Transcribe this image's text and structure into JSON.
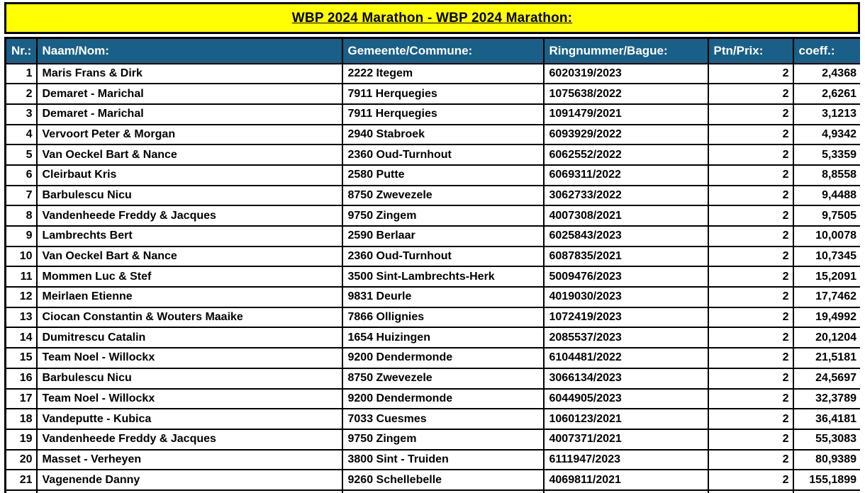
{
  "title": "WBP 2024 Marathon - WBP 2024 Marathon:",
  "colors": {
    "banner_bg": "#ffff00",
    "header_bg": "#1a5f87",
    "header_text": "#ffffff",
    "border": "#000000"
  },
  "table": {
    "columns": [
      {
        "key": "nr",
        "label": "Nr.:"
      },
      {
        "key": "naam",
        "label": "Naam/Nom:"
      },
      {
        "key": "gem",
        "label": "Gemeente/Commune:"
      },
      {
        "key": "ring",
        "label": "Ringnummer/Bague:"
      },
      {
        "key": "ptn",
        "label": "Ptn/Prix:"
      },
      {
        "key": "coeff",
        "label": "coeff.:"
      }
    ],
    "rows": [
      [
        "1",
        "Maris Frans & Dirk",
        "2222 Itegem",
        "6020319/2023",
        "2",
        "2,4368"
      ],
      [
        "2",
        "Demaret - Marichal",
        "7911 Herquegies",
        "1075638/2022",
        "2",
        "2,6261"
      ],
      [
        "3",
        "Demaret - Marichal",
        "7911 Herquegies",
        "1091479/2021",
        "2",
        "3,1213"
      ],
      [
        "4",
        "Vervoort Peter & Morgan",
        "2940 Stabroek",
        "6093929/2022",
        "2",
        "4,9342"
      ],
      [
        "5",
        "Van Oeckel Bart & Nance",
        "2360 Oud-Turnhout",
        "6062552/2022",
        "2",
        "5,3359"
      ],
      [
        "6",
        "Cleirbaut Kris",
        "2580 Putte",
        "6069311/2022",
        "2",
        "8,8558"
      ],
      [
        "7",
        "Barbulescu Nicu",
        "8750 Zwevezele",
        "3062733/2022",
        "2",
        "9,4488"
      ],
      [
        "8",
        "Vandenheede Freddy & Jacques",
        "9750 Zingem",
        "4007308/2021",
        "2",
        "9,7505"
      ],
      [
        "9",
        "Lambrechts Bert",
        "2590 Berlaar",
        "6025843/2023",
        "2",
        "10,0078"
      ],
      [
        "10",
        "Van Oeckel Bart & Nance",
        "2360 Oud-Turnhout",
        "6087835/2021",
        "2",
        "10,7345"
      ],
      [
        "11",
        "Mommen Luc & Stef",
        "3500 Sint-Lambrechts-Herk",
        "5009476/2023",
        "2",
        "15,2091"
      ],
      [
        "12",
        "Meirlaen Etienne",
        "9831 Deurle",
        "4019030/2023",
        "2",
        "17,7462"
      ],
      [
        "13",
        "Ciocan Constantin & Wouters Maaike",
        "7866 Ollignies",
        "1072419/2023",
        "2",
        "19,4992"
      ],
      [
        "14",
        "Dumitrescu Catalin",
        "1654 Huizingen",
        "2085537/2023",
        "2",
        "20,1204"
      ],
      [
        "15",
        "Team Noel - Willockx",
        "9200 Dendermonde",
        "6104481/2022",
        "2",
        "21,5181"
      ],
      [
        "16",
        "Barbulescu Nicu",
        "8750 Zwevezele",
        "3066134/2023",
        "2",
        "24,5697"
      ],
      [
        "17",
        "Team Noel - Willockx",
        "9200 Dendermonde",
        "6044905/2023",
        "2",
        "32,3789"
      ],
      [
        "18",
        "Vandeputte - Kubica",
        "7033 Cuesmes",
        "1060123/2021",
        "2",
        "36,4181"
      ],
      [
        "19",
        "Vandenheede Freddy & Jacques",
        "9750 Zingem",
        "4007371/2021",
        "2",
        "55,3083"
      ],
      [
        "20",
        "Masset - Verheyen",
        "3800 Sint - Truiden",
        "6111947/2023",
        "2",
        "80,9389"
      ],
      [
        "21",
        "Vagenende Danny",
        "9260 Schellebelle",
        "4069811/2021",
        "2",
        "155,1899"
      ]
    ]
  }
}
